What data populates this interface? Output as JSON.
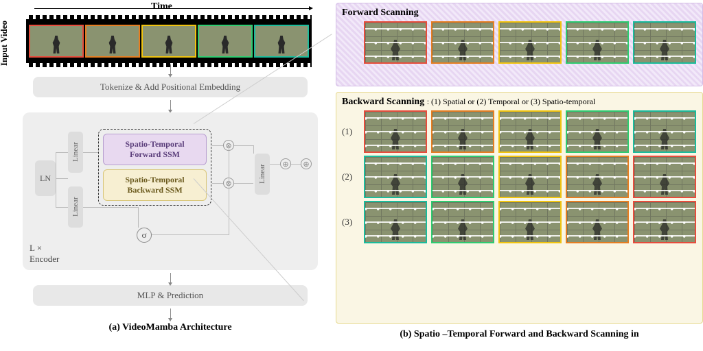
{
  "colors": {
    "frame_borders": [
      "#e74c3c",
      "#e67e22",
      "#f1c40f",
      "#2ecc71",
      "#1abc9c"
    ],
    "bwd_row2": [
      "#1abc9c",
      "#2ecc71",
      "#f1c40f",
      "#e67e22",
      "#e74c3c"
    ],
    "ssm_fwd_bg": "#e8d9f0",
    "ssm_bwd_bg": "#f7efd2",
    "panel_fwd_bg": "#efe2f7",
    "panel_bwd_bg": "#faf6e4",
    "video_bg": "#8a9370"
  },
  "left": {
    "time_label": "Time",
    "input_label": "Input Video",
    "tokenize": "Tokenize & Add Positional Embedding",
    "ln": "LN",
    "linear": "Linear",
    "ssm_fwd": "Spatio-Temporal\nForward SSM",
    "ssm_bwd": "Spatio-Temporal\nBackward SSM",
    "sigma": "σ",
    "enc_label": "L ×\nEncoder",
    "mlp": "MLP & Prediction",
    "caption": "(a) VideoMamba Architecture"
  },
  "right": {
    "fwd_title": "Forward Scanning",
    "bwd_title": "Backward Scanning",
    "bwd_sub": ": (1) Spatial or (2) Temporal or (3) Spatio-temporal",
    "rows": [
      {
        "label": "(1)",
        "order": "normal",
        "scan": "rtl"
      },
      {
        "label": "(2)",
        "order": "reverse",
        "scan": "ltr"
      },
      {
        "label": "(3)",
        "order": "reverse",
        "scan": "rtl"
      }
    ],
    "caption": "(b) Spatio –Temporal Forward and Backward Scanning in"
  }
}
